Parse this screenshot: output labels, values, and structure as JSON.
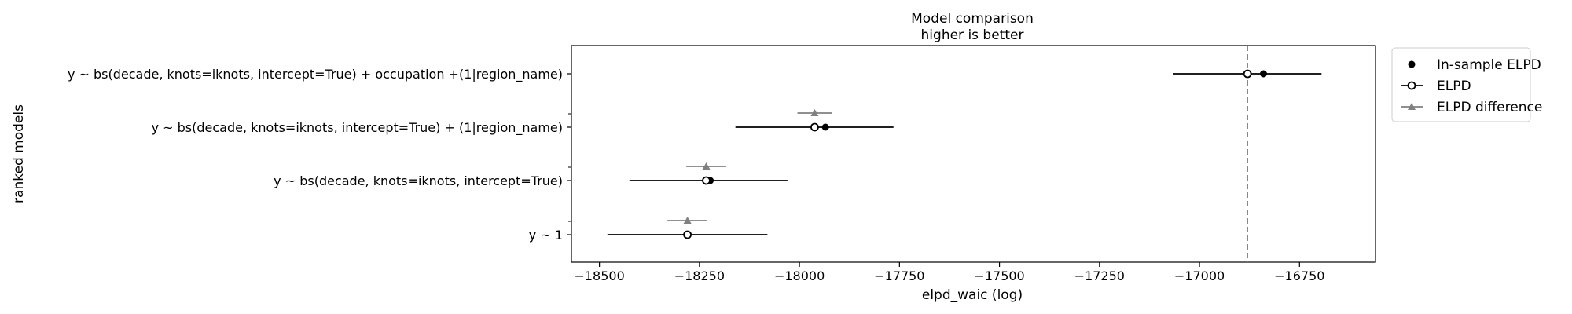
{
  "chart_data": {
    "type": "scatter",
    "title_lines": [
      "Model comparison",
      "higher is better"
    ],
    "xlabel": "elpd_waic (log)",
    "ylabel": "ranked models",
    "xlim": [
      -18570,
      -16560
    ],
    "xticks": [
      -18500,
      -18250,
      -18000,
      -17750,
      -17500,
      -17250,
      -17000,
      -16750
    ],
    "xtick_labels": [
      "−18500",
      "−18250",
      "−18000",
      "−17750",
      "−17500",
      "−17250",
      "−17000",
      "−16750"
    ],
    "reference_line": -16880,
    "models": [
      {
        "label": "y ~ bs(decade, knots=iknots, intercept=True) + occupation +(1|region_name)",
        "insample": -16840,
        "elpd": -16880,
        "se_low": -17065,
        "se_high": -16695,
        "diff": null,
        "diff_low": null,
        "diff_high": null
      },
      {
        "label": "y ~ bs(decade, knots=iknots, intercept=True) + (1|region_name)",
        "insample": -17935,
        "elpd": -17962,
        "se_low": -18160,
        "se_high": -17765,
        "diff": -17962,
        "diff_low": -18005,
        "diff_high": -17918
      },
      {
        "label": "y ~ bs(decade, knots=iknots, intercept=True)",
        "insample": -18223,
        "elpd": -18233,
        "se_low": -18425,
        "se_high": -18030,
        "diff": -18233,
        "diff_low": -18283,
        "diff_high": -18183
      },
      {
        "label": "y ~ 1",
        "insample": -18280,
        "elpd": -18280,
        "se_low": -18480,
        "se_high": -18080,
        "diff": -18280,
        "diff_low": -18330,
        "diff_high": -18230
      }
    ],
    "legend": {
      "position": "outside-right",
      "entries": [
        "In-sample ELPD",
        "ELPD",
        "ELPD difference"
      ]
    },
    "colors": {
      "main": "#000000",
      "difference": "#808080",
      "refline": "#808080"
    }
  }
}
